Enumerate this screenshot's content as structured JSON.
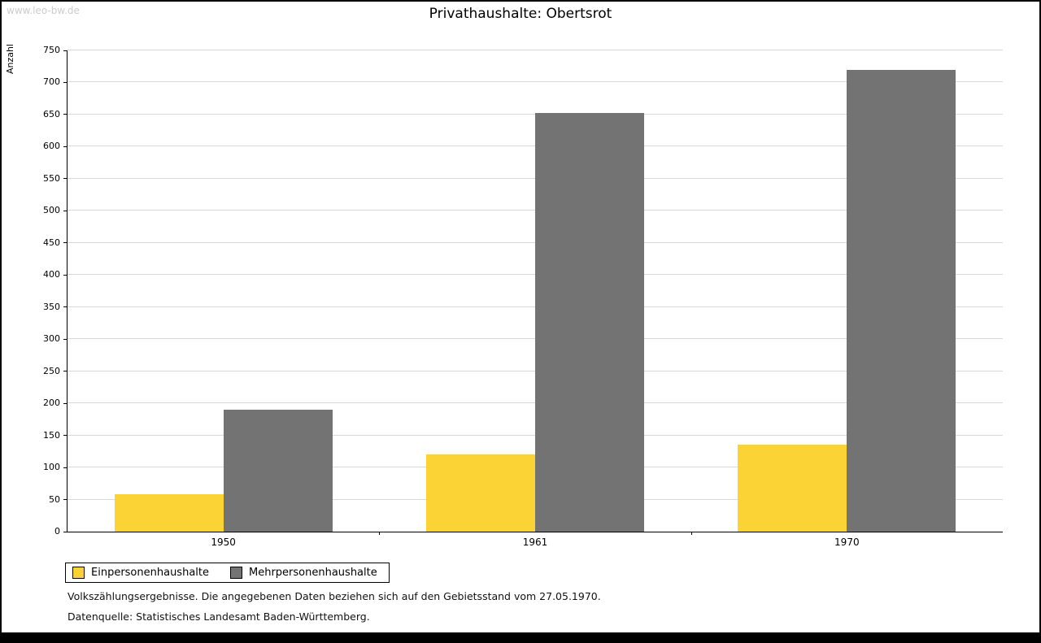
{
  "watermark": "www.leo-bw.de",
  "chart_data": {
    "type": "bar",
    "title": "Privathaushalte: Obertsrot",
    "ylabel": "Anzahl",
    "xlabel": "",
    "categories": [
      "1950",
      "1961",
      "1970"
    ],
    "series": [
      {
        "name": "Einpersonenhaushalte",
        "color": "#fbd335",
        "values": [
          58,
          120,
          135
        ]
      },
      {
        "name": "Mehrpersonenhaushalte",
        "color": "#737373",
        "values": [
          190,
          652,
          720
        ]
      }
    ],
    "ylim": [
      0,
      750
    ],
    "ytick_step": 50,
    "grid": true,
    "legend_position": "bottom-left"
  },
  "footnotes": [
    "Volkszählungsergebnisse. Die angegebenen Daten beziehen sich auf den Gebietsstand vom 27.05.1970.",
    "Datenquelle: Statistisches Landesamt Baden-Württemberg."
  ]
}
